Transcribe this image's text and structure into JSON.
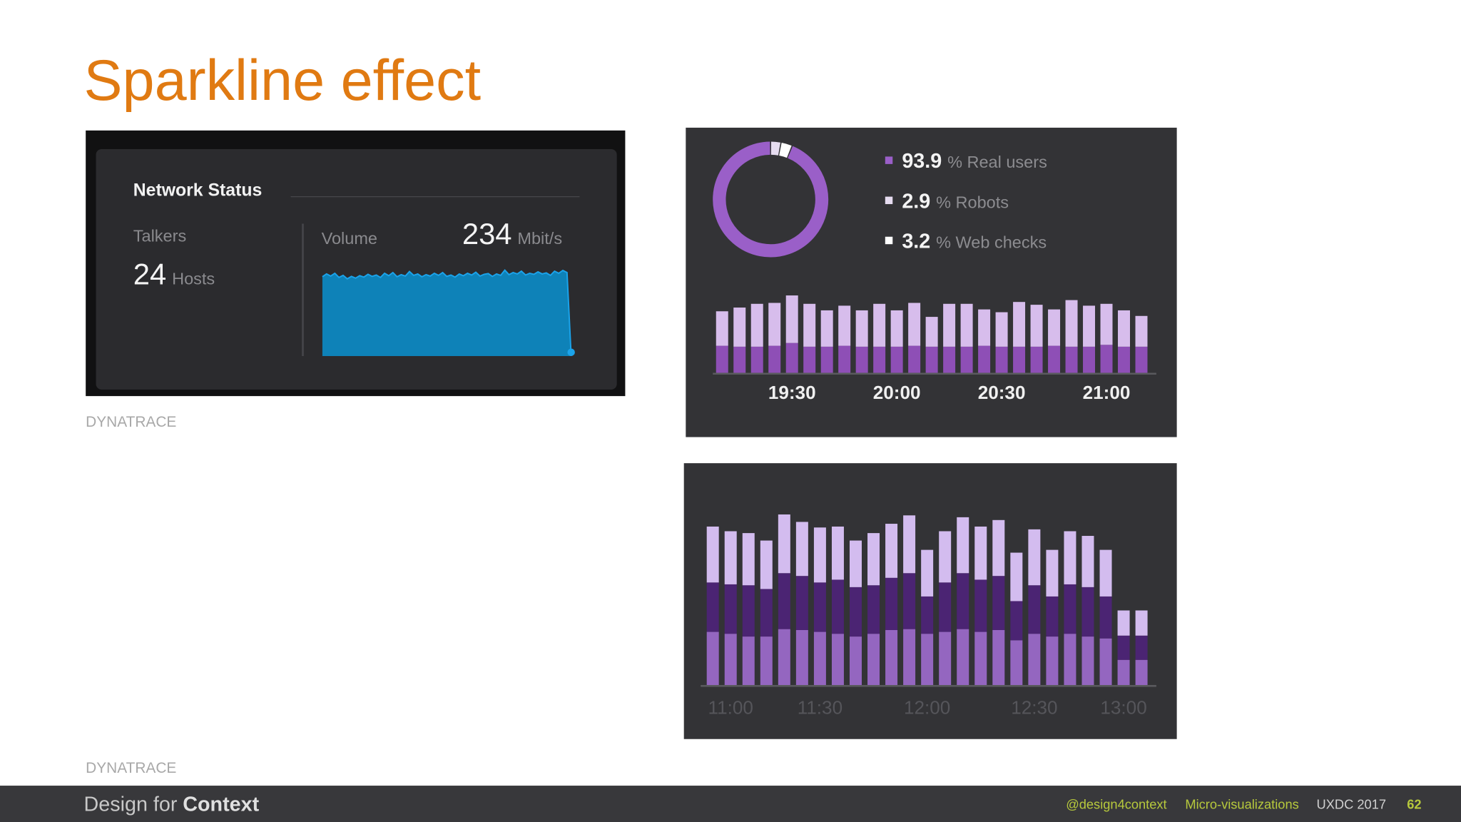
{
  "slide": {
    "title": "Sparkline effect",
    "captions": [
      "DYNATRACE",
      "DYNATRACE"
    ],
    "footer": {
      "brand": [
        "Design for",
        "Context"
      ],
      "handle": "@design4context",
      "topic": "Micro-visualizations",
      "event": "UXDC 2017",
      "page": 62
    }
  },
  "chart_data": [
    {
      "type": "area",
      "title": "Network Status",
      "stats": [
        {
          "label": "Talkers",
          "value": 24,
          "unit": "Hosts"
        },
        {
          "label": "Volume",
          "value": 234,
          "unit": "Mbit/s"
        }
      ],
      "values": [
        228,
        236,
        230,
        238,
        226,
        232,
        222,
        229,
        224,
        231,
        227,
        235,
        229,
        233,
        226,
        238,
        231,
        240,
        228,
        234,
        230,
        243,
        232,
        236,
        228,
        234,
        230,
        238,
        232,
        240,
        229,
        233,
        227,
        236,
        231,
        238,
        233,
        241,
        230,
        235,
        237,
        229,
        236,
        232,
        247,
        234,
        240,
        236,
        244,
        233,
        238,
        235,
        242,
        236,
        239,
        232,
        244,
        238,
        246,
        240,
        0
      ],
      "ylim": [
        0,
        260
      ],
      "color": "#0e82b8",
      "line_color": "#1ba3ea"
    },
    {
      "type": "donut",
      "unit": "%",
      "categories": [
        "Real users",
        "Robots",
        "Web checks"
      ],
      "values": [
        93.9,
        2.9,
        3.2
      ],
      "colors": [
        "#9a5fc8",
        "#e6dcf0",
        "#ffffff"
      ]
    },
    {
      "type": "stacked-bar",
      "categories": [
        null,
        null,
        null,
        null,
        "19:30",
        null,
        null,
        null,
        null,
        null,
        "20:00",
        null,
        null,
        null,
        null,
        null,
        "20:30",
        null,
        null,
        null,
        null,
        null,
        "21:00",
        null,
        null
      ],
      "series": [
        {
          "color": "#8e4fb6",
          "values": [
            29,
            28,
            28,
            29,
            32,
            28,
            28,
            29,
            28,
            28,
            28,
            29,
            28,
            28,
            28,
            29,
            28,
            28,
            28,
            29,
            28,
            28,
            30,
            28,
            28
          ]
        },
        {
          "color": "#d7bdec",
          "values": [
            37,
            42,
            46,
            46,
            51,
            46,
            39,
            43,
            39,
            46,
            39,
            46,
            32,
            46,
            46,
            39,
            37,
            48,
            45,
            39,
            50,
            44,
            44,
            39,
            33
          ]
        }
      ],
      "ylim": [
        0,
        90
      ]
    },
    {
      "type": "stacked-bar",
      "categories": [
        null,
        "11:00",
        null,
        null,
        null,
        null,
        "11:30",
        null,
        null,
        null,
        null,
        null,
        "12:00",
        null,
        null,
        null,
        null,
        null,
        "12:30",
        null,
        null,
        null,
        null,
        "13:00",
        null
      ],
      "series": [
        {
          "color": "#9466c0",
          "values": [
            57,
            55,
            52,
            52,
            60,
            59,
            57,
            55,
            52,
            55,
            59,
            60,
            55,
            57,
            60,
            57,
            59,
            48,
            55,
            52,
            55,
            52,
            50,
            27,
            27
          ]
        },
        {
          "color": "#4b2473",
          "values": [
            53,
            53,
            55,
            51,
            60,
            58,
            53,
            58,
            53,
            52,
            56,
            60,
            40,
            53,
            60,
            56,
            58,
            42,
            52,
            43,
            53,
            53,
            45,
            26,
            26
          ]
        },
        {
          "color": "#d3bcef",
          "values": [
            60,
            57,
            56,
            52,
            63,
            58,
            59,
            57,
            50,
            56,
            58,
            62,
            50,
            55,
            60,
            57,
            60,
            52,
            60,
            50,
            57,
            55,
            50,
            27,
            27
          ]
        }
      ],
      "ylim": [
        0,
        200
      ],
      "tick_color": "#55555a"
    }
  ]
}
